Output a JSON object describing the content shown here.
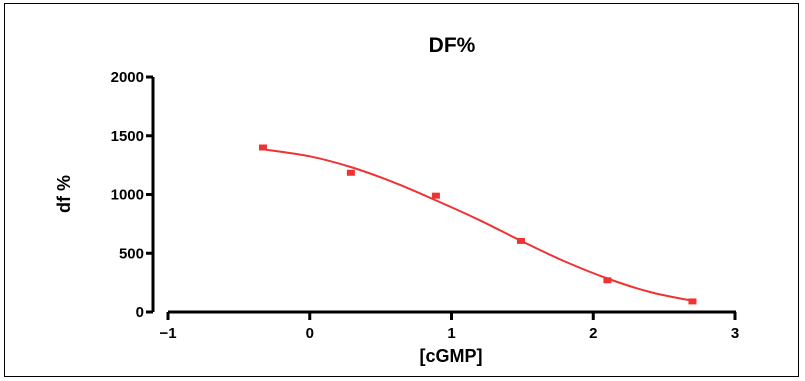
{
  "chart_data": {
    "type": "scatter",
    "title": "DF%",
    "xlabel": "[cGMP]",
    "ylabel": "df %",
    "xlim": [
      -1,
      3
    ],
    "ylim": [
      0,
      2000
    ],
    "x_ticks": [
      -1,
      0,
      1,
      2,
      3
    ],
    "y_ticks": [
      0,
      500,
      1000,
      1500,
      2000
    ],
    "x_tick_labels": [
      "−1",
      "0",
      "1",
      "2",
      "3"
    ],
    "y_tick_labels": [
      "0",
      "500",
      "1000",
      "1500",
      "2000"
    ],
    "grid": false,
    "legend": "none",
    "series": [
      {
        "x": [
          -0.33,
          0.29,
          0.89,
          1.49,
          2.1,
          2.7
        ],
        "y": [
          1400,
          1185,
          990,
          605,
          270,
          90
        ],
        "color": "#ee3333"
      }
    ],
    "fit_curve": {
      "type": "sigmoidal",
      "x": [
        -0.33,
        0,
        0.3,
        0.6,
        0.9,
        1.2,
        1.5,
        1.8,
        2.1,
        2.4,
        2.7
      ],
      "y": [
        1385,
        1325,
        1230,
        1100,
        945,
        780,
        600,
        430,
        285,
        170,
        95
      ],
      "color": "#ee3333"
    }
  }
}
